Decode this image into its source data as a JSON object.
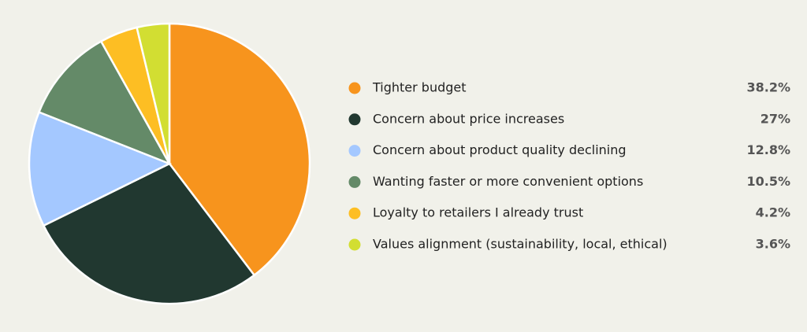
{
  "chart_data": {
    "type": "pie",
    "categories": [
      "Tighter budget",
      "Concern about price increases",
      "Concern about product quality declining",
      "Wanting faster or more convenient options",
      "Loyalty to retailers I already trust",
      "Values alignment (sustainability, local, ethical)"
    ],
    "values": [
      38.2,
      27,
      12.8,
      10.5,
      4.2,
      3.6
    ],
    "value_labels": [
      "38.2%",
      "27%",
      "12.8%",
      "10.5%",
      "4.2%",
      "3.6%"
    ],
    "colors": [
      "#f7941d",
      "#213830",
      "#a4c8ff",
      "#648a68",
      "#fdbe23",
      "#d2de32"
    ]
  }
}
